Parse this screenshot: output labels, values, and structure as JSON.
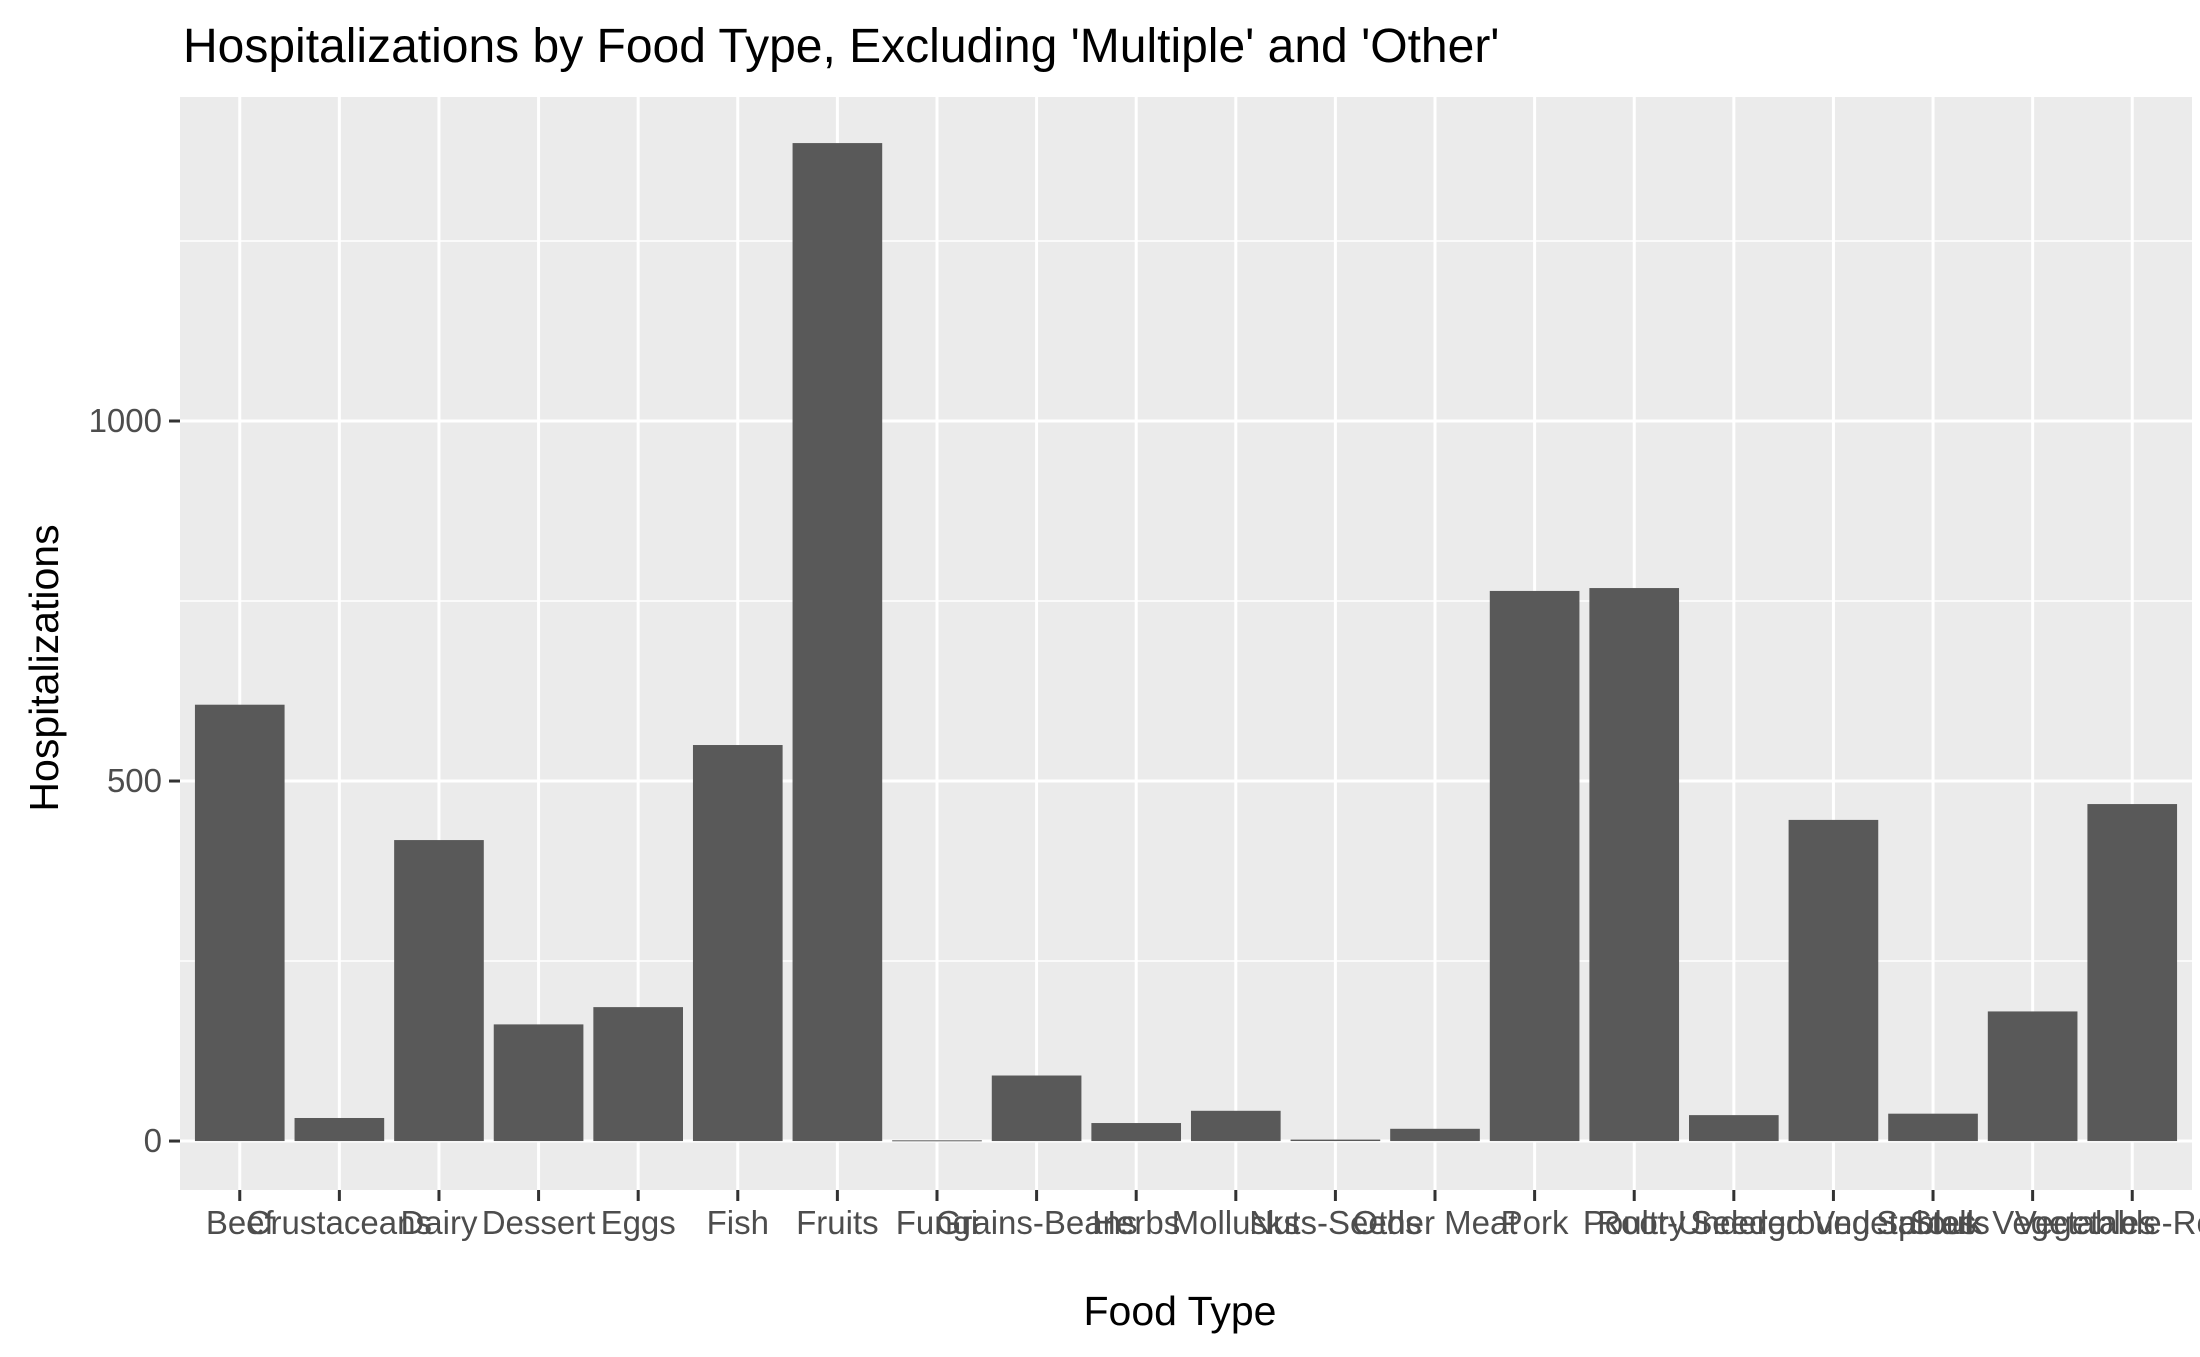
{
  "chart_data": {
    "type": "bar",
    "title": "Hospitalizations by Food Type, Excluding 'Multiple' and 'Other'",
    "xlabel": "Food Type",
    "ylabel": "Hospitalizations",
    "categories": [
      "Beef",
      "Crustaceans",
      "Dairy",
      "Dessert",
      "Eggs",
      "Fish",
      "Fruits",
      "Fungi",
      "Grains-Beans",
      "Herbs",
      "Mollusks",
      "Nuts-Seeds",
      "Other Meat",
      "Pork",
      "Poultry",
      "Root-Underground",
      "Seeded Vegetables",
      "Sprouts",
      "Stalk Vegetables",
      "Vegetable-Row-"
    ],
    "values": [
      606,
      32,
      418,
      162,
      186,
      550,
      1386,
      1,
      91,
      25,
      42,
      2,
      17,
      764,
      768,
      36,
      446,
      38,
      180,
      468
    ],
    "ylim": [
      -68,
      1450
    ],
    "yticks": [
      0,
      500,
      1000
    ],
    "grid": true,
    "colors": {
      "panel": "#ebebeb",
      "grid": "#ffffff",
      "bar": "#595959",
      "tick": "#333333",
      "tick_label": "#4d4d4d"
    }
  }
}
